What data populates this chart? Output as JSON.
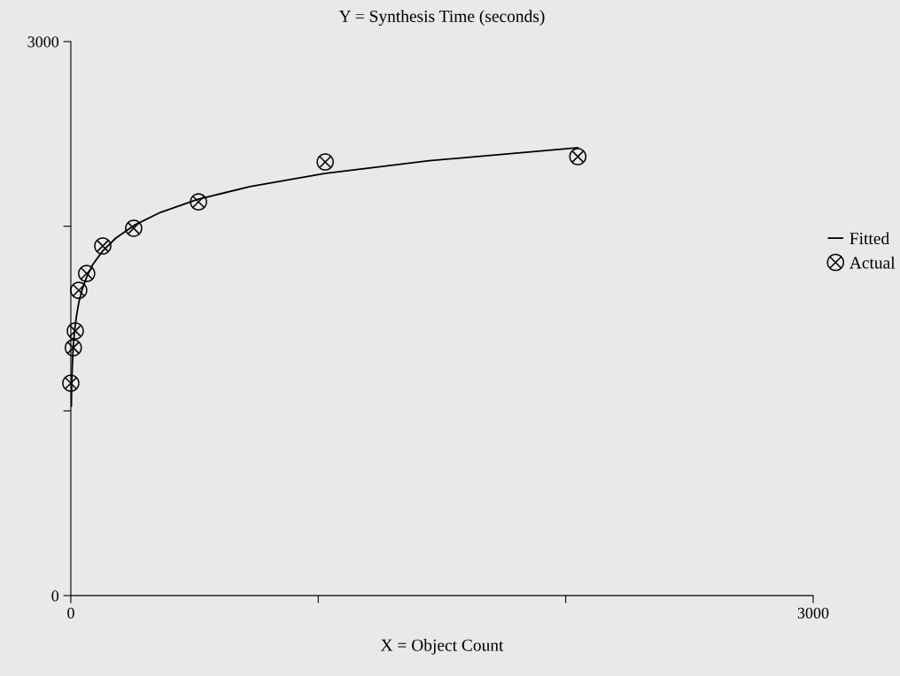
{
  "chart_data": {
    "type": "scatter",
    "title": "Y = Synthesis Time (seconds)",
    "xlabel": "X = Object Count",
    "xlim": [
      0,
      3000
    ],
    "ylim": [
      0,
      3000
    ],
    "xticks": [
      0,
      {
        "value": 1000,
        "label": null
      },
      {
        "value": 2000,
        "label": null
      },
      3000
    ],
    "yticks": [
      0,
      {
        "value": 1000,
        "label": null
      },
      {
        "value": 2000,
        "label": null
      },
      3000
    ],
    "grid": false,
    "legend": "right",
    "series": [
      {
        "name": "Fitted",
        "type": "line",
        "marker": "none",
        "color": "#000000",
        "x": [
          2,
          3,
          4,
          6,
          8,
          11,
          16,
          23,
          32,
          45,
          64,
          90,
          128,
          181,
          256,
          362,
          512,
          724,
          1024,
          1448,
          2049
        ],
        "values": [
          1025,
          1105,
          1165,
          1245,
          1305,
          1370,
          1445,
          1515,
          1585,
          1655,
          1725,
          1795,
          1865,
          1935,
          2005,
          2075,
          2145,
          2215,
          2285,
          2355,
          2425
        ]
      },
      {
        "name": "Actual",
        "marker": "cross",
        "color": "#000000",
        "x": [
          0,
          10,
          18,
          32,
          64,
          129,
          254,
          516,
          1028,
          2049
        ],
        "values": [
          1150,
          1342,
          1433,
          1653,
          1744,
          1893,
          1989,
          2132,
          2348,
          2377
        ]
      }
    ]
  }
}
